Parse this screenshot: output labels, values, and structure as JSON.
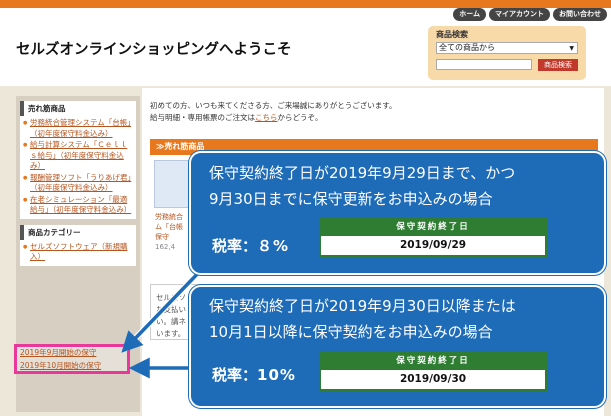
{
  "header": {
    "top_links": [
      "ホーム",
      "マイアカウント",
      "お問い合わせ"
    ],
    "welcome": "セルズオンラインショッピングへようこそ"
  },
  "search": {
    "title": "商品検索",
    "select_value": "全ての商品から",
    "button_label": "商品検索"
  },
  "sidebar": {
    "best_title": "売れ筋商品",
    "best_items": [
      "労務統合管理システム「台帳」（初年度保守料金込み）",
      "給与計算システム「Ｃｅｌｌｓ給与」（初年度保守料金込み）",
      "報酬管理ソフト「うりあげ君」（初年度保守料金込み）",
      "在老シミュレーション「最適給与」（初年度保守料金込み）"
    ],
    "category_title": "商品カテゴリー",
    "category_items": [
      "セルズソフトウェア（新規購入）"
    ],
    "highlighted_items": [
      "2019年9月開始の保守",
      "2019年10月開始の保守"
    ]
  },
  "main": {
    "intro_line1": "初めての方、いつも来てくださる方、ご来場誠にありがとうございます。",
    "intro_line2_pre": "給与明細・専用帳票のご注文は",
    "intro_line2_link": "こちら",
    "intro_line2_post": "からどうぞ。",
    "best_bar": "≫売れ筋商品",
    "product_line1": "労務統合",
    "product_line2": "ム「台帳",
    "product_line3": "保守",
    "product_price": "162,4",
    "mid_line1": "セルズソ",
    "mid_line2": "お支払い",
    "mid_line3": "い。講ネ",
    "mid_line4": "います。"
  },
  "callouts": [
    {
      "line1": "保守契約終了日が2019年9月29日まで、かつ",
      "line2": "9月30日までに保守更新をお申込みの場合",
      "tax_label": "税率：",
      "tax_value": "８%",
      "card_title": "保守契約終了日",
      "card_date": "2019/09/29"
    },
    {
      "line1": "保守契約終了日が2019年9月30日以降または",
      "line2": "10月1日以降に保守契約をお申込みの場合",
      "tax_label": "税率：",
      "tax_value": "10%",
      "card_title": "保守契約終了日",
      "card_date": "2019/09/30"
    }
  ],
  "colors": {
    "accent_orange": "#e8781e",
    "callout_blue": "#1e6bb8",
    "card_green": "#2e7d32",
    "highlight_pink": "#e8389a"
  }
}
